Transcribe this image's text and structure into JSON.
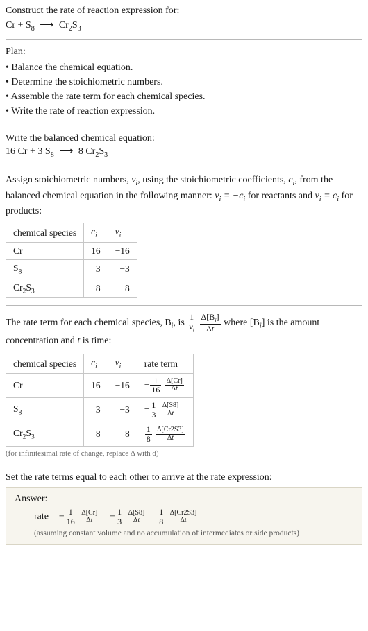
{
  "header": {
    "prompt": "Construct the rate of reaction expression for:",
    "equation_lhs": "Cr + S",
    "equation_s_sub": "8",
    "equation_rhs": "Cr",
    "equation_cr_sub": "2",
    "equation_s2": "S",
    "equation_s2_sub": "3"
  },
  "plan": {
    "title": "Plan:",
    "items": [
      "Balance the chemical equation.",
      "Determine the stoichiometric numbers.",
      "Assemble the rate term for each chemical species.",
      "Write the rate of reaction expression."
    ]
  },
  "balanced": {
    "intro": "Write the balanced chemical equation:",
    "c1": "16",
    "sp1": "Cr",
    "c2": "3",
    "sp2": "S",
    "sp2_sub": "8",
    "c3": "8",
    "sp3": "Cr",
    "sp3_sub1": "2",
    "sp3_s": "S",
    "sp3_sub2": "3"
  },
  "stoich": {
    "intro_a": "Assign stoichiometric numbers, ",
    "intro_b": ", using the stoichiometric coefficients, ",
    "intro_c": ", from the balanced chemical equation in the following manner: ",
    "intro_d": " for reactants and ",
    "intro_e": " for products:",
    "nu_sym": "ν",
    "c_sym": "c",
    "i_sym": "i",
    "rel1_lhs": "ν",
    "rel1_eq": " = −",
    "rel1_rhs": "c",
    "rel2_lhs": "ν",
    "rel2_eq": " = ",
    "rel2_rhs": "c",
    "table": {
      "headers": [
        "chemical species",
        "c",
        "ν"
      ],
      "rows": [
        {
          "species": "Cr",
          "sub": "",
          "c": "16",
          "nu": "−16"
        },
        {
          "species": "S",
          "sub": "8",
          "c": "3",
          "nu": "−3"
        },
        {
          "species": "Cr₂S₃",
          "sub": "",
          "c": "8",
          "nu": "8"
        }
      ]
    }
  },
  "rate_term": {
    "intro_a": "The rate term for each chemical species, B",
    "intro_b": ", is ",
    "intro_c": " where [B",
    "intro_d": "] is the amount concentration and ",
    "intro_e": " is time:",
    "t_sym": "t",
    "frac1_num": "1",
    "frac1_den": "ν",
    "frac2_num": "Δ[B",
    "frac2_den": "Δt",
    "table": {
      "headers": [
        "chemical species",
        "c",
        "ν",
        "rate term"
      ],
      "rows": [
        {
          "species": "Cr",
          "c": "16",
          "nu": "−16",
          "sign": "−",
          "coef_num": "1",
          "coef_den": "16",
          "conc": "Δ[Cr]",
          "dt": "Δt"
        },
        {
          "species": "S₈",
          "c": "3",
          "nu": "−3",
          "sign": "−",
          "coef_num": "1",
          "coef_den": "3",
          "conc": "Δ[S8]",
          "dt": "Δt"
        },
        {
          "species": "Cr₂S₃",
          "c": "8",
          "nu": "8",
          "sign": "",
          "coef_num": "1",
          "coef_den": "8",
          "conc": "Δ[Cr2S3]",
          "dt": "Δt"
        }
      ]
    },
    "note": "(for infinitesimal rate of change, replace Δ with d)"
  },
  "final": {
    "intro": "Set the rate terms equal to each other to arrive at the rate expression:",
    "ans_label": "Answer:",
    "rate_word": "rate = ",
    "t1": {
      "sign": "−",
      "num": "1",
      "den": "16",
      "conc": "Δ[Cr]",
      "dt": "Δt"
    },
    "t2": {
      "sign": " = −",
      "num": "1",
      "den": "3",
      "conc": "Δ[S8]",
      "dt": "Δt"
    },
    "t3": {
      "sign": " = ",
      "num": "1",
      "den": "8",
      "conc": "Δ[Cr2S3]",
      "dt": "Δt"
    },
    "assumption": "(assuming constant volume and no accumulation of intermediates or side products)"
  }
}
